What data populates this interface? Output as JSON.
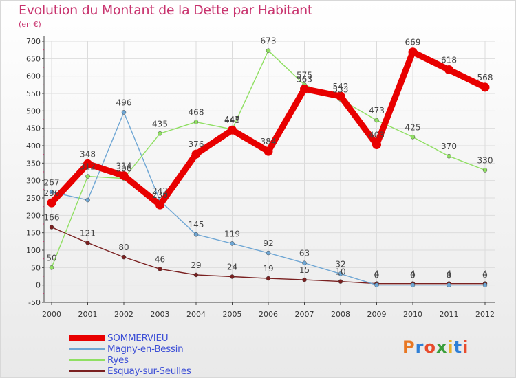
{
  "chart_data": {
    "type": "line",
    "title": "Evolution du Montant de la Dette par Habitant",
    "subtitle": "(en €)",
    "categories": [
      "2000",
      "2001",
      "2002",
      "2003",
      "2004",
      "2005",
      "2006",
      "2007",
      "2008",
      "2009",
      "2010",
      "2011",
      "2012"
    ],
    "ylim": [
      -50,
      700
    ],
    "yticks": [
      -50,
      0,
      50,
      100,
      150,
      200,
      250,
      300,
      350,
      400,
      450,
      500,
      550,
      600,
      650,
      700
    ],
    "grid": true,
    "legend_position": "bottom-left",
    "series": [
      {
        "name": "SOMMERVIEU",
        "color": "#e80000",
        "values": [
          236,
          348,
          314,
          230,
          376,
          445,
          384,
          563,
          542,
          403,
          669,
          618,
          568
        ],
        "labels": [
          "236",
          "348",
          "314",
          "230",
          "376",
          "445",
          "384",
          "563",
          "542",
          "403",
          "669",
          "618",
          "568"
        ]
      },
      {
        "name": "Magny-en-Bessin",
        "color": "#6ea6d4",
        "values": [
          267,
          244,
          496,
          242,
          145,
          119,
          92,
          63,
          32,
          0,
          0,
          0,
          0
        ],
        "labels": [
          "267",
          "",
          "496",
          "242",
          "145",
          "119",
          "92",
          "63",
          "32",
          "0",
          "0",
          "0",
          "0"
        ]
      },
      {
        "name": "Ryes",
        "color": "#8fdf62",
        "values": [
          50,
          312,
          306,
          435,
          468,
          447,
          673,
          575,
          533,
          473,
          425,
          370,
          330
        ],
        "labels": [
          "50",
          "312",
          "306",
          "435",
          "468",
          "447",
          "673",
          "575",
          "533",
          "473",
          "425",
          "370",
          "330"
        ]
      },
      {
        "name": "Esquay-sur-Seulles",
        "color": "#7a2020",
        "values": [
          166,
          121,
          80,
          46,
          29,
          24,
          19,
          15,
          10,
          4,
          4,
          4,
          4
        ],
        "labels": [
          "166",
          "121",
          "80",
          "46",
          "29",
          "24",
          "19",
          "15",
          "10",
          "4",
          "4",
          "4",
          "4"
        ]
      }
    ]
  },
  "logo": {
    "letters": [
      "P",
      "r",
      "o",
      "x",
      "i",
      "t",
      "i"
    ],
    "colors": [
      "#e87722",
      "#2f7fd6",
      "#e84b2c",
      "#3a9e3a",
      "#e8b12a",
      "#2f7fd6",
      "#e84b2c"
    ]
  }
}
